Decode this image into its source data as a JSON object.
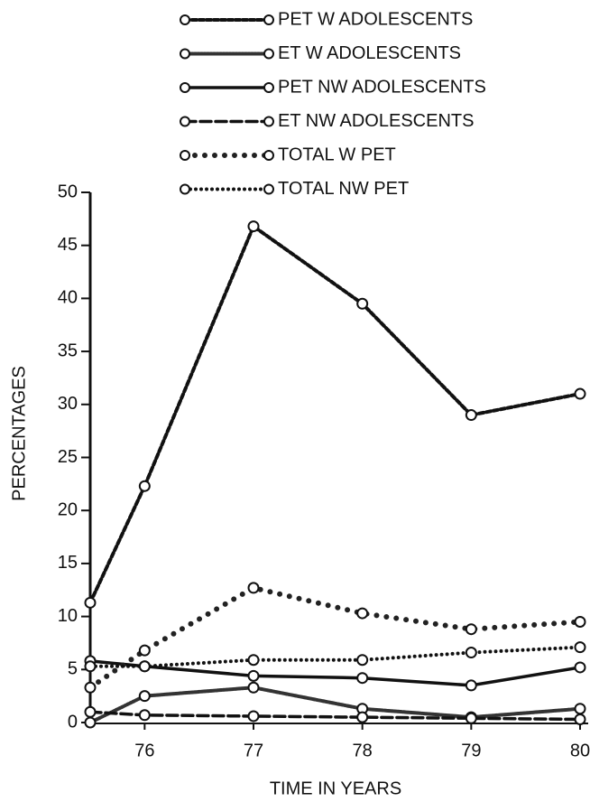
{
  "chart_data": {
    "type": "line",
    "x_label": "TIME IN YEARS",
    "y_label": "PERCENTAGES",
    "x": [
      75.5,
      76,
      77,
      78,
      79,
      80
    ],
    "xlim": [
      75.5,
      80
    ],
    "xticks": [
      76,
      77,
      78,
      79,
      80
    ],
    "ylim": [
      0,
      50
    ],
    "yticks": [
      0,
      5,
      10,
      15,
      20,
      25,
      30,
      35,
      40,
      45,
      50
    ],
    "series": [
      {
        "name": "PET W ADOLESCENTS",
        "color": "#111111",
        "dash": "5 3",
        "width": 4,
        "values": [
          11.3,
          22.3,
          46.8,
          39.5,
          29,
          31
        ]
      },
      {
        "name": "ET W ADOLESCENTS",
        "color": "#333333",
        "dash": "2 1.5",
        "width": 4,
        "values": [
          0,
          2.5,
          3.3,
          1.3,
          0.5,
          1.3
        ]
      },
      {
        "name": "PET NW ADOLESCENTS",
        "color": "#111111",
        "dash": "none",
        "width": 3.5,
        "values": [
          5.8,
          5.3,
          4.4,
          4.2,
          3.5,
          5.2
        ]
      },
      {
        "name": "ET NW ADOLESCENTS",
        "color": "#111111",
        "dash": "12 5",
        "width": 3.5,
        "values": [
          1.0,
          0.7,
          0.6,
          0.5,
          0.4,
          0.3
        ]
      },
      {
        "name": "TOTAL W PET",
        "color": "#222222",
        "dash": "0 11",
        "width": 6,
        "values": [
          3.3,
          6.8,
          12.7,
          10.3,
          8.8,
          9.5
        ]
      },
      {
        "name": "TOTAL NW PET",
        "color": "#111111",
        "dash": "0 6",
        "width": 4,
        "values": [
          5.3,
          5.3,
          5.9,
          5.9,
          6.6,
          7.1
        ]
      }
    ]
  }
}
